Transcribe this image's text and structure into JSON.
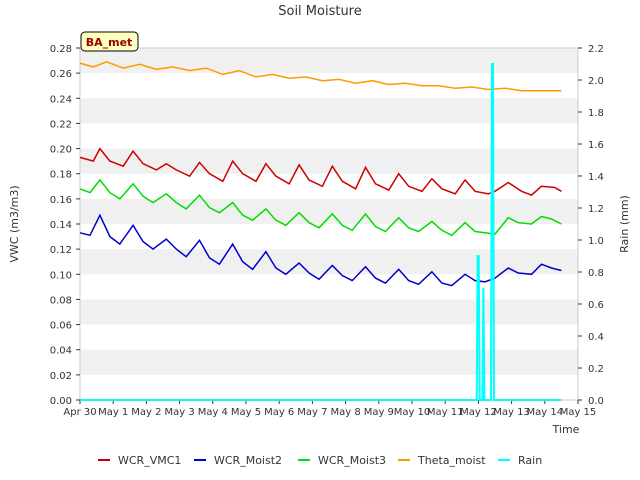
{
  "chart_data": {
    "type": "line",
    "title": "Soil Moisture",
    "badge": "BA_met",
    "xlabel": "Time",
    "ylabel": "VWC (m3/m3)",
    "y2label": "Rain (mm)",
    "x_tick_labels": [
      "Apr 30",
      "May 1",
      "May 2",
      "May 3",
      "May 4",
      "May 5",
      "May 6",
      "May 7",
      "May 8",
      "May 9",
      "May 10",
      "May 11",
      "May 12",
      "May 13",
      "May 14",
      "May 15"
    ],
    "xlim": [
      0,
      15
    ],
    "ylim": [
      0,
      0.28
    ],
    "y_ticks": [
      "0.00",
      "0.02",
      "0.04",
      "0.06",
      "0.08",
      "0.10",
      "0.12",
      "0.14",
      "0.16",
      "0.18",
      "0.20",
      "0.22",
      "0.24",
      "0.26",
      "0.28"
    ],
    "y2lim": [
      0,
      2.2
    ],
    "y2_ticks": [
      "0.0",
      "0.2",
      "0.4",
      "0.6",
      "0.8",
      "1.0",
      "1.2",
      "1.4",
      "1.6",
      "1.8",
      "2.0",
      "2.2"
    ],
    "series": [
      {
        "name": "WCR_VMC1",
        "color": "#cc0000",
        "axis": "left",
        "x": [
          0.0,
          0.4,
          0.6,
          0.9,
          1.3,
          1.6,
          1.9,
          2.3,
          2.6,
          2.9,
          3.3,
          3.6,
          3.9,
          4.3,
          4.6,
          4.9,
          5.3,
          5.6,
          5.9,
          6.3,
          6.6,
          6.9,
          7.3,
          7.6,
          7.9,
          8.3,
          8.6,
          8.9,
          9.3,
          9.6,
          9.9,
          10.3,
          10.6,
          10.9,
          11.3,
          11.6,
          11.9,
          12.3,
          12.5,
          12.9,
          13.3,
          13.6,
          13.9,
          14.3,
          14.5
        ],
        "values": [
          0.193,
          0.19,
          0.2,
          0.19,
          0.186,
          0.198,
          0.188,
          0.183,
          0.188,
          0.183,
          0.178,
          0.189,
          0.18,
          0.174,
          0.19,
          0.18,
          0.174,
          0.188,
          0.178,
          0.172,
          0.187,
          0.175,
          0.17,
          0.186,
          0.174,
          0.168,
          0.185,
          0.172,
          0.167,
          0.18,
          0.17,
          0.166,
          0.176,
          0.168,
          0.164,
          0.175,
          0.166,
          0.164,
          0.166,
          0.173,
          0.166,
          0.163,
          0.17,
          0.169,
          0.166
        ]
      },
      {
        "name": "WCR_Moist2",
        "color": "#0000cc",
        "axis": "left",
        "x": [
          0.0,
          0.3,
          0.6,
          0.9,
          1.2,
          1.6,
          1.9,
          2.2,
          2.6,
          2.9,
          3.2,
          3.6,
          3.9,
          4.2,
          4.6,
          4.9,
          5.2,
          5.6,
          5.9,
          6.2,
          6.6,
          6.9,
          7.2,
          7.6,
          7.9,
          8.2,
          8.6,
          8.9,
          9.2,
          9.6,
          9.9,
          10.2,
          10.6,
          10.9,
          11.2,
          11.6,
          11.9,
          12.2,
          12.5,
          12.9,
          13.2,
          13.6,
          13.9,
          14.2,
          14.5
        ],
        "values": [
          0.133,
          0.131,
          0.147,
          0.13,
          0.124,
          0.139,
          0.126,
          0.12,
          0.128,
          0.12,
          0.114,
          0.127,
          0.113,
          0.108,
          0.124,
          0.11,
          0.104,
          0.118,
          0.105,
          0.1,
          0.109,
          0.101,
          0.096,
          0.107,
          0.099,
          0.095,
          0.106,
          0.097,
          0.093,
          0.104,
          0.095,
          0.092,
          0.102,
          0.093,
          0.091,
          0.1,
          0.095,
          0.094,
          0.097,
          0.105,
          0.101,
          0.1,
          0.108,
          0.105,
          0.103
        ]
      },
      {
        "name": "WCR_Moist3",
        "color": "#00dd00",
        "axis": "left",
        "x": [
          0.0,
          0.3,
          0.6,
          0.9,
          1.2,
          1.6,
          1.9,
          2.2,
          2.6,
          2.9,
          3.2,
          3.6,
          3.9,
          4.2,
          4.6,
          4.9,
          5.2,
          5.6,
          5.9,
          6.2,
          6.6,
          6.9,
          7.2,
          7.6,
          7.9,
          8.2,
          8.6,
          8.9,
          9.2,
          9.6,
          9.9,
          10.2,
          10.6,
          10.9,
          11.2,
          11.6,
          11.9,
          12.2,
          12.5,
          12.9,
          13.2,
          13.6,
          13.9,
          14.2,
          14.5
        ],
        "values": [
          0.168,
          0.165,
          0.175,
          0.165,
          0.16,
          0.172,
          0.162,
          0.157,
          0.164,
          0.157,
          0.152,
          0.163,
          0.153,
          0.149,
          0.157,
          0.147,
          0.143,
          0.152,
          0.143,
          0.139,
          0.149,
          0.141,
          0.137,
          0.148,
          0.139,
          0.135,
          0.148,
          0.138,
          0.134,
          0.145,
          0.137,
          0.134,
          0.142,
          0.135,
          0.131,
          0.141,
          0.134,
          0.133,
          0.132,
          0.145,
          0.141,
          0.14,
          0.146,
          0.144,
          0.14
        ]
      },
      {
        "name": "Theta_moist",
        "color": "#ff9900",
        "axis": "left",
        "x": [
          0.0,
          0.4,
          0.8,
          1.3,
          1.8,
          2.3,
          2.8,
          3.3,
          3.8,
          4.3,
          4.8,
          5.3,
          5.8,
          6.3,
          6.8,
          7.3,
          7.8,
          8.3,
          8.8,
          9.3,
          9.8,
          10.3,
          10.8,
          11.3,
          11.8,
          12.3,
          12.8,
          13.3,
          13.8,
          14.3,
          14.5
        ],
        "values": [
          0.268,
          0.265,
          0.269,
          0.264,
          0.267,
          0.263,
          0.265,
          0.262,
          0.264,
          0.259,
          0.262,
          0.257,
          0.259,
          0.256,
          0.257,
          0.254,
          0.255,
          0.252,
          0.254,
          0.251,
          0.252,
          0.25,
          0.25,
          0.248,
          0.249,
          0.247,
          0.248,
          0.246,
          0.246,
          0.246,
          0.246
        ]
      },
      {
        "name": "Rain",
        "color": "#00ffff",
        "axis": "right",
        "x": [
          0.0,
          11.95,
          11.98,
          12.01,
          12.04,
          12.12,
          12.15,
          12.18,
          12.38,
          12.41,
          12.44,
          12.47,
          14.5
        ],
        "values": [
          0.0,
          0.0,
          0.9,
          0.9,
          0.0,
          0.0,
          0.7,
          0.0,
          0.0,
          2.1,
          2.1,
          0.0,
          0.0
        ]
      }
    ],
    "legend_position": "bottom",
    "grid": "horizontal-bands"
  }
}
